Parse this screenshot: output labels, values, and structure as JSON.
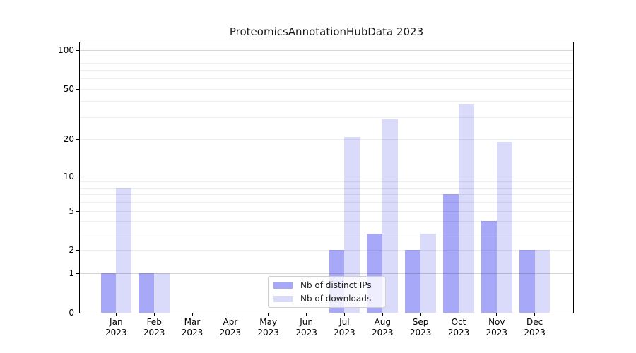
{
  "chart_data": {
    "type": "bar",
    "title": "ProteomicsAnnotationHubData 2023",
    "months": [
      "Jan",
      "Feb",
      "Mar",
      "Apr",
      "May",
      "Jun",
      "Jul",
      "Aug",
      "Sep",
      "Oct",
      "Nov",
      "Dec"
    ],
    "year": "2023",
    "series": [
      {
        "name": "Nb of distinct IPs",
        "color": "#a8a8f8",
        "values": [
          1,
          1,
          0,
          0,
          0,
          0,
          2,
          3,
          2,
          7,
          4,
          2
        ]
      },
      {
        "name": "Nb of downloads",
        "color": "#dadafa",
        "values": [
          8,
          1,
          0,
          0,
          0,
          0,
          21,
          29,
          3,
          38,
          19,
          2
        ]
      }
    ],
    "yscale": "log1p",
    "yticks": [
      0,
      1,
      2,
      5,
      10,
      20,
      50,
      100
    ],
    "ylim": [
      0,
      115
    ],
    "grid": "horizontal-log-gridlines-above-bars",
    "legend_position": "lower-center-inside-plot"
  }
}
